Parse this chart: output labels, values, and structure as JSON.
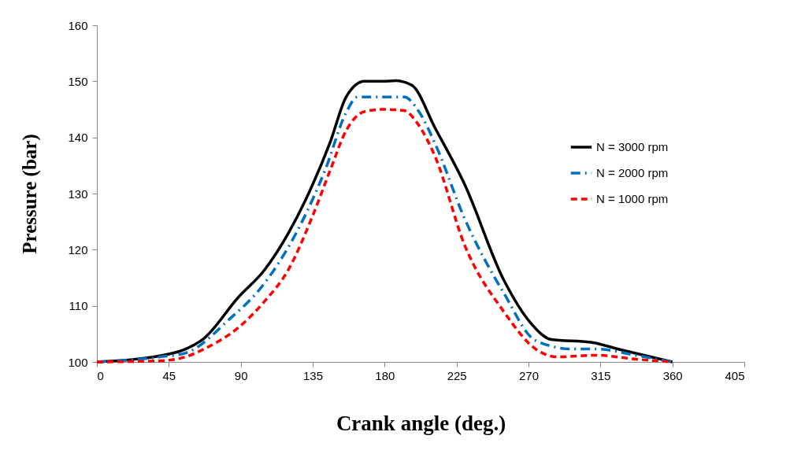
{
  "chart_data": {
    "type": "line",
    "xlabel": "Crank angle (deg.)",
    "ylabel": "Pressure (bar)",
    "xlim": [
      0,
      405
    ],
    "xticks": [
      0,
      45,
      90,
      135,
      180,
      225,
      270,
      315,
      360,
      405
    ],
    "ylim": [
      100,
      160
    ],
    "yticks": [
      100,
      110,
      120,
      130,
      140,
      150,
      160
    ],
    "grid": false,
    "legend": "top right",
    "series": [
      {
        "name": "N = 3000 rpm",
        "color": "#000000",
        "line_style": "solid",
        "x": [
          0,
          45,
          55.5,
          67,
          88.4,
          104.9,
          119.7,
          134.5,
          146,
          155.9,
          167.4,
          178.9,
          187.1,
          197,
          211.7,
          229.8,
          254.7,
          271.2,
          284.3,
          309,
          328.7,
          360
        ],
        "values": [
          100,
          101.4,
          102.3,
          104.2,
          111.5,
          116.4,
          122.9,
          131.3,
          139.2,
          147.2,
          150,
          150,
          150.1,
          149.3,
          141.6,
          131.8,
          114.5,
          107,
          104,
          103.5,
          102.1,
          100
        ]
      },
      {
        "name": "N = 2000 rpm",
        "color": "#0070c0",
        "line_style": "dashdot",
        "x": [
          0,
          39.6,
          55.5,
          83.6,
          101.7,
          128,
          142.8,
          155.9,
          163,
          178.9,
          192.1,
          201.9,
          211.7,
          229.8,
          254.7,
          274.5,
          297.5,
          312.3,
          336.9,
          360
        ],
        "values": [
          100,
          100.9,
          101.6,
          107.8,
          112.9,
          124.8,
          134.2,
          144.4,
          147.2,
          147.2,
          147.2,
          144.4,
          138.8,
          125.7,
          112.2,
          103.8,
          102.3,
          102.3,
          101.2,
          100
        ]
      },
      {
        "name": "N = 1000 rpm",
        "color": "#ff0000",
        "line_style": "dashed",
        "x": [
          0,
          39.6,
          55.5,
          67,
          88.4,
          104.9,
          119.7,
          134.5,
          146,
          155.9,
          167.4,
          178.9,
          192.1,
          200.3,
          211.7,
          229.8,
          254.7,
          274.5,
          287.6,
          312.3,
          336.9,
          360
        ],
        "values": [
          100,
          100.2,
          100.9,
          102.3,
          106.1,
          110.8,
          116.4,
          125.7,
          134.2,
          141.2,
          144.6,
          145,
          144.8,
          142.6,
          136.5,
          121,
          108.9,
          102.3,
          100.9,
          101.2,
          100.5,
          100
        ]
      }
    ]
  }
}
